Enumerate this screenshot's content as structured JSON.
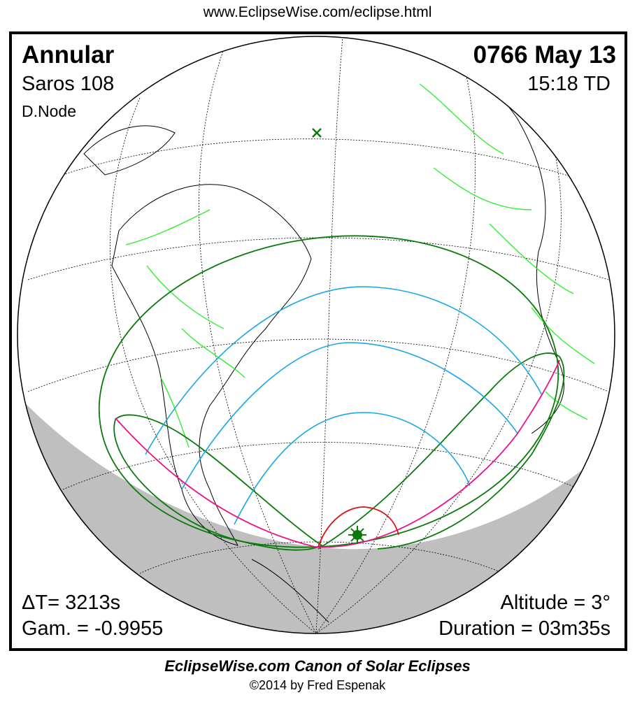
{
  "header": {
    "url": "www.EclipseWise.com/eclipse.html"
  },
  "eclipse": {
    "type": "Annular",
    "saros": "Saros 108",
    "node": "D.Node",
    "date": "0766 May 13",
    "time": "15:18 TD",
    "delta_t": "ΔT=   3213s",
    "gamma": "Gam. = -0.9955",
    "altitude": "Altitude =  3°",
    "duration": "Duration = 03m35s"
  },
  "map": {
    "colors": {
      "globe_outline": "#000000",
      "night_shade": "#bfbfbf",
      "borders": "#33ee33",
      "penumbra_limits": "#0a7a0a",
      "magnitude_curves": "#1aa7e8",
      "rise_set_curve": "#ee1188",
      "max_eclipse_curve": "#dd1111",
      "greatest_eclipse_marker": "#0a7a0a"
    },
    "markers": [
      "greatest-eclipse-sun-icon",
      "subsolar-point-x-icon"
    ]
  },
  "footer": {
    "title": "EclipseWise.com Canon of Solar Eclipses",
    "copyright": "©2014 by Fred Espenak"
  }
}
